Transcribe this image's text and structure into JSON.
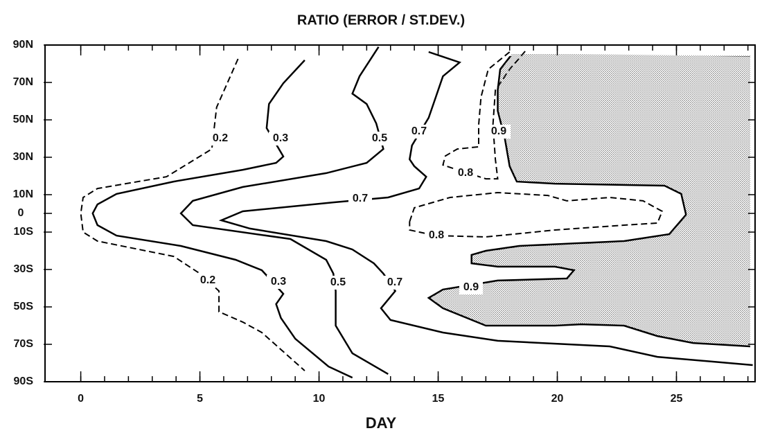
{
  "chart_data": {
    "type": "contour",
    "title": "RATIO (ERROR / ST.DEV.)",
    "x_label": "DAY",
    "xlim": [
      -1.5,
      28.3
    ],
    "ylim": [
      -90,
      90
    ],
    "xticks": [
      0,
      5,
      10,
      15,
      20,
      25
    ],
    "xticks_minor": [
      0,
      1,
      2,
      3,
      4,
      5,
      6,
      7,
      8,
      9,
      10,
      11,
      12,
      13,
      14,
      15,
      16,
      17,
      18,
      19,
      20,
      21,
      22,
      23,
      24,
      25,
      26,
      27,
      28
    ],
    "yticks": [
      {
        "value": 90,
        "label": "90N"
      },
      {
        "value": 70,
        "label": "70N"
      },
      {
        "value": 50,
        "label": "50N"
      },
      {
        "value": 30,
        "label": "30N"
      },
      {
        "value": 10,
        "label": "10N"
      },
      0,
      {
        "value": -10,
        "label": "10S"
      },
      {
        "value": -30,
        "label": "30S"
      },
      {
        "value": -50,
        "label": "50S"
      },
      {
        "value": -70,
        "label": "70S"
      },
      {
        "value": -90,
        "label": "90S"
      }
    ],
    "color": "#000000",
    "contours": [
      {
        "level": 0.2,
        "line_style": "dashed",
        "x": [
          6.6,
          5.7,
          5.6,
          5.5,
          3.6,
          0.7,
          0.1,
          0.0,
          0.1,
          0.7,
          3.9,
          5.0,
          5.8,
          5.8,
          6.8,
          7.6,
          9.4
        ],
        "y": [
          82.6,
          56.7,
          45.6,
          34.4,
          19.6,
          13.3,
          8.5,
          0,
          -10,
          -14.8,
          -23,
          -32.2,
          -41.5,
          -52.6,
          -58.1,
          -63.7,
          -84.1
        ]
      },
      {
        "level": 0.3,
        "line_style": "solid",
        "x": [
          9.4,
          8.5,
          7.9,
          7.8,
          8.5,
          8.2,
          6.8,
          3.9,
          1.5,
          0.7,
          0.5,
          0.7,
          1.5,
          4.2,
          6.5,
          7.6,
          8.5,
          8.2,
          8.4,
          9.0,
          10.4,
          11.4
        ],
        "y": [
          81.9,
          69.6,
          58.5,
          45.6,
          30.4,
          27,
          23.3,
          17,
          10.4,
          4.8,
          0,
          -6.3,
          -11.9,
          -17.4,
          -24.8,
          -30.4,
          -43,
          -48.5,
          -55.9,
          -67,
          -81.9,
          -87.8
        ]
      },
      {
        "level": 0.5,
        "line_style": "solid",
        "x": [
          12.5,
          11.7,
          11.4,
          12.0,
          12.4,
          12.7,
          12.0,
          10.3,
          6.8,
          4.7,
          4.2,
          4.7,
          8.8,
          10.3,
          10.6,
          10.7,
          10.7,
          11.4,
          12.9
        ],
        "y": [
          89,
          73.3,
          64,
          58.5,
          48.1,
          34.4,
          27,
          21.5,
          14.1,
          6.7,
          0,
          -6.3,
          -13.7,
          -24.8,
          -32.2,
          -41.5,
          -60,
          -74.8,
          -85.9
        ]
      },
      {
        "level": 0.7,
        "line_style": "solid",
        "x": [
          14.6,
          15.9,
          15.2,
          14.9,
          14.6,
          13.9,
          13.8,
          14.0,
          14.5,
          14.2,
          12.9,
          10.6,
          6.8,
          5.9,
          7.1,
          10.3,
          11.4,
          12.3,
          12.7,
          13.2,
          12.6,
          13.0,
          15.2,
          17.5,
          22.2,
          24.2,
          28.2
        ],
        "y": [
          86.3,
          80.7,
          73.3,
          62.2,
          51.1,
          36.3,
          28.9,
          25.2,
          19.6,
          13.3,
          8.5,
          5.9,
          1.1,
          -3.7,
          -8.1,
          -14.8,
          -19.3,
          -26.7,
          -32.2,
          -41.5,
          -50.7,
          -57,
          -63.7,
          -68.1,
          -71.1,
          -76.7,
          -81.1
        ]
      },
      {
        "level": 0.8,
        "line_style": "dashed",
        "x": [
          18.0,
          17.1,
          16.8,
          16.7,
          16.7,
          15.8,
          15.3,
          15.2,
          15.8,
          17.0,
          17.5,
          17.4,
          17.3,
          17.4,
          18.0,
          18.7
        ],
        "y": [
          86.3,
          77,
          62.2,
          47.4,
          35.6,
          34.4,
          30.7,
          25.9,
          23.3,
          18.5,
          18.5,
          28.9,
          47.4,
          65.9,
          77,
          87.4
        ]
      },
      {
        "level": 0.8,
        "line_style": "dashed",
        "x": [
          13.8,
          14.0,
          15.5,
          17.5,
          19.6,
          20.4,
          22.2,
          23.6,
          24.4,
          24.2,
          22.8,
          19.9,
          17.0,
          14.9,
          13.8,
          13.8
        ],
        "y": [
          -4.4,
          3,
          8.5,
          11.1,
          9.6,
          6.7,
          8.5,
          6.7,
          1.1,
          -5.2,
          -6.3,
          -8.9,
          -12.6,
          -11.9,
          -8.9,
          -4.4
        ]
      },
      {
        "level": 0.9,
        "line_style": "solid",
        "shaded": true,
        "x": [
          28.1,
          25.7,
          24.2,
          22.8,
          21.0,
          19.9,
          17.0,
          15.2,
          14.6,
          15.2,
          17.5,
          20.4,
          20.7,
          19.9,
          17.5,
          16.4,
          16.4,
          17.0,
          18.4,
          22.8,
          24.7,
          25.4,
          25.2,
          24.5,
          19.9,
          18.3,
          18.0,
          17.8,
          17.5,
          17.5,
          17.6,
          18.1,
          28.1
        ],
        "y": [
          -71.1,
          -69.3,
          -65.6,
          -60,
          -59.3,
          -60,
          -60,
          -50.7,
          -45.2,
          -40.7,
          -35.9,
          -34.8,
          -30.4,
          -28.5,
          -28.5,
          -26.7,
          -22.2,
          -20,
          -17.4,
          -14.8,
          -11.1,
          -0.7,
          10.4,
          14.8,
          15.9,
          17,
          25.2,
          40,
          54.8,
          65.9,
          77,
          85.2,
          84.4
        ]
      }
    ]
  }
}
